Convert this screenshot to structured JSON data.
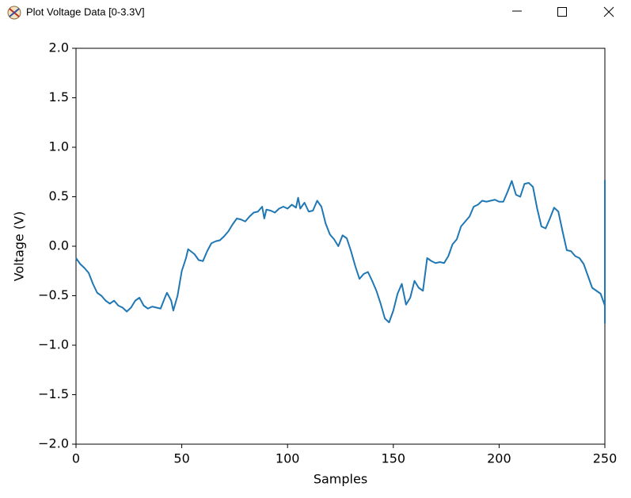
{
  "window_title": "Plot Voltage Data [0-3.3V]",
  "chart_data": {
    "type": "line",
    "xlabel": "Samples",
    "ylabel": "Voltage (V)",
    "x": [
      0,
      2,
      4,
      6,
      8,
      10,
      12,
      14,
      16,
      18,
      20,
      22,
      24,
      26,
      28,
      30,
      32,
      34,
      36,
      38,
      40,
      42,
      43,
      45,
      46,
      48,
      50,
      52,
      53,
      56,
      58,
      60,
      62,
      64,
      66,
      68,
      70,
      72,
      74,
      76,
      78,
      80,
      82,
      84,
      86,
      88,
      89,
      90,
      92,
      94,
      96,
      98,
      100,
      102,
      104,
      105,
      106,
      108,
      110,
      112,
      114,
      116,
      118,
      120,
      122,
      124,
      126,
      128,
      130,
      132,
      134,
      136,
      138,
      140,
      142,
      144,
      146,
      148,
      150,
      152,
      154,
      156,
      158,
      160,
      162,
      164,
      166,
      168,
      170,
      172,
      174,
      176,
      178,
      180,
      182,
      184,
      186,
      188,
      190,
      192,
      194,
      196,
      198,
      200,
      202,
      204,
      206,
      208,
      210,
      212,
      214,
      216,
      218,
      220,
      222,
      224,
      226,
      228,
      230,
      232,
      234,
      236,
      238,
      240,
      242,
      244,
      246,
      248,
      250,
      250,
      250
    ],
    "series": [
      {
        "color": "#1f77b4",
        "values": [
          -0.12,
          -0.18,
          -0.22,
          -0.27,
          -0.38,
          -0.47,
          -0.5,
          -0.55,
          -0.58,
          -0.55,
          -0.6,
          -0.62,
          -0.66,
          -0.62,
          -0.55,
          -0.52,
          -0.6,
          -0.63,
          -0.61,
          -0.62,
          -0.63,
          -0.52,
          -0.47,
          -0.55,
          -0.65,
          -0.5,
          -0.25,
          -0.12,
          -0.03,
          -0.08,
          -0.14,
          -0.15,
          -0.05,
          0.03,
          0.05,
          0.06,
          0.1,
          0.15,
          0.22,
          0.28,
          0.27,
          0.25,
          0.3,
          0.34,
          0.35,
          0.4,
          0.28,
          0.37,
          0.36,
          0.34,
          0.38,
          0.4,
          0.38,
          0.42,
          0.39,
          0.49,
          0.38,
          0.44,
          0.35,
          0.36,
          0.46,
          0.4,
          0.23,
          0.12,
          0.07,
          0.0,
          0.11,
          0.08,
          -0.05,
          -0.2,
          -0.33,
          -0.28,
          -0.26,
          -0.35,
          -0.45,
          -0.58,
          -0.73,
          -0.77,
          -0.65,
          -0.48,
          -0.38,
          -0.59,
          -0.52,
          -0.35,
          -0.42,
          -0.45,
          -0.12,
          -0.15,
          -0.17,
          -0.16,
          -0.17,
          -0.1,
          0.02,
          0.07,
          0.2,
          0.25,
          0.3,
          0.4,
          0.42,
          0.46,
          0.45,
          0.46,
          0.47,
          0.45,
          0.45,
          0.55,
          0.66,
          0.52,
          0.5,
          0.63,
          0.64,
          0.6,
          0.38,
          0.2,
          0.18,
          0.28,
          0.39,
          0.35,
          0.15,
          -0.04,
          -0.05,
          -0.1,
          -0.12,
          -0.18,
          -0.3,
          -0.42,
          -0.45,
          -0.48,
          -0.6,
          -0.78,
          0.67
        ]
      }
    ],
    "xlim": [
      0,
      250
    ],
    "ylim": [
      -2,
      2
    ],
    "xticks": [
      0,
      50,
      100,
      150,
      200,
      250
    ],
    "yticks": [
      {
        "value": -2,
        "label": "−2.0"
      },
      {
        "value": -1.5,
        "label": "−1.5"
      },
      {
        "value": -1,
        "label": "−1.0"
      },
      {
        "value": -0.5,
        "label": "−0.5"
      },
      {
        "value": 0,
        "label": "0.0"
      },
      {
        "value": 0.5,
        "label": "0.5"
      },
      {
        "value": 1,
        "label": "1.0"
      },
      {
        "value": 1.5,
        "label": "1.5"
      },
      {
        "value": 2,
        "label": "2.0"
      }
    ]
  }
}
